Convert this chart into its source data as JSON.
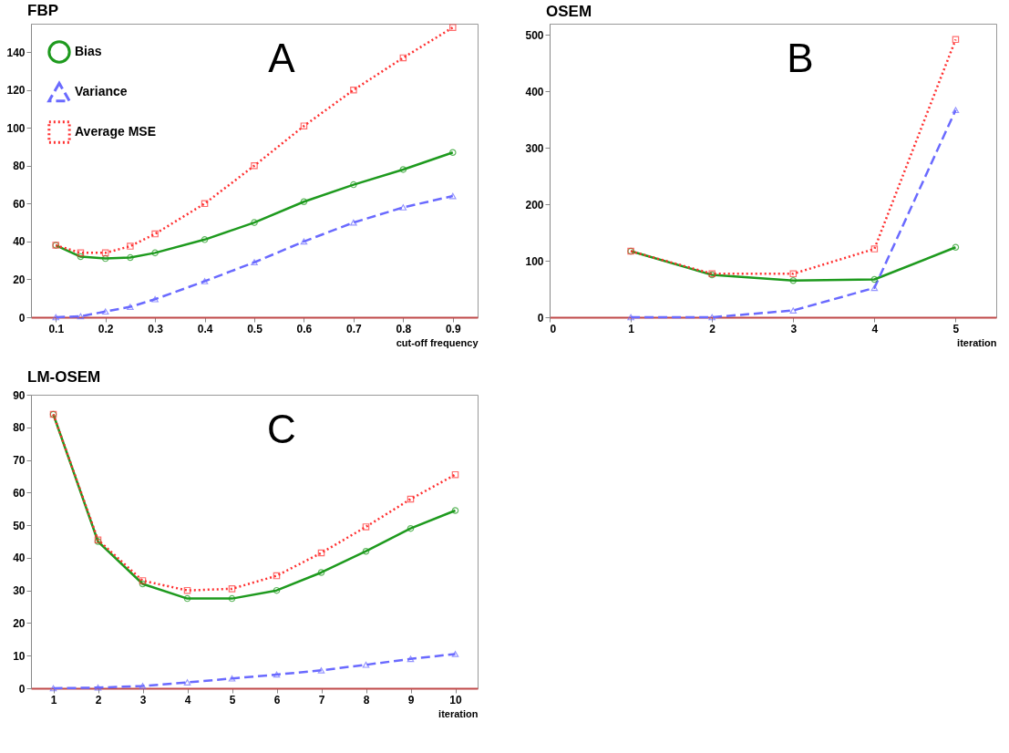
{
  "chart_data": [
    {
      "type": "line",
      "title": "FBP",
      "xlabel": "cut-off frequency",
      "annotations": [
        "A"
      ],
      "legend": "top left",
      "x": [
        0.1,
        0.15,
        0.2,
        0.25,
        0.3,
        0.4,
        0.5,
        0.6,
        0.7,
        0.8,
        0.9
      ],
      "xlim": [
        0.05,
        0.95
      ],
      "xticks": [
        0.1,
        0.2,
        0.3,
        0.4,
        0.5,
        0.6,
        0.7,
        0.8,
        0.9
      ],
      "ylim": [
        0,
        155
      ],
      "yticks": [
        0,
        20,
        40,
        60,
        80,
        100,
        120,
        140
      ],
      "series": [
        {
          "name": "Bias",
          "color": "#1e9a1e",
          "marker": "circle",
          "line_style": "solid",
          "values": [
            38,
            32,
            31,
            31.5,
            34,
            41,
            50,
            61,
            70,
            78,
            87
          ]
        },
        {
          "name": "Variance",
          "color": "#6a6aff",
          "marker": "triangle",
          "line_style": "dashed",
          "values": [
            0,
            0.5,
            3,
            5.5,
            9.5,
            19,
            29,
            40,
            50,
            58,
            64
          ]
        },
        {
          "name": "Average MSE",
          "color": "#ff3030",
          "marker": "square",
          "line_style": "dotted",
          "values": [
            38,
            34,
            34,
            37.5,
            44,
            60,
            80,
            101,
            120,
            137,
            153
          ]
        }
      ]
    },
    {
      "type": "line",
      "title": "OSEM",
      "xlabel": "iteration",
      "annotations": [
        "B"
      ],
      "legend": "top left",
      "x": [
        1,
        2,
        3,
        4,
        5
      ],
      "xlim": [
        0,
        5.5
      ],
      "xticks": [
        0,
        1,
        2,
        3,
        4,
        5
      ],
      "ylim": [
        0,
        520
      ],
      "yticks": [
        0,
        100,
        200,
        300,
        400,
        500
      ],
      "series": [
        {
          "name": "Bias",
          "color": "#1e9a1e",
          "marker": "circle",
          "line_style": "solid",
          "values": [
            117,
            75,
            65,
            67,
            124
          ]
        },
        {
          "name": "Variance",
          "color": "#6a6aff",
          "marker": "triangle",
          "line_style": "dashed",
          "values": [
            0,
            0,
            12,
            52,
            367
          ]
        },
        {
          "name": "Average MSE",
          "color": "#ff3030",
          "marker": "square",
          "line_style": "dotted",
          "values": [
            117,
            77,
            77,
            121,
            492
          ]
        }
      ]
    },
    {
      "type": "line",
      "title": "LM-OSEM",
      "xlabel": "iteration",
      "annotations": [
        "C"
      ],
      "legend": "top left",
      "x": [
        1,
        2,
        3,
        4,
        5,
        6,
        7,
        8,
        9,
        10
      ],
      "xlim": [
        0.5,
        10.5
      ],
      "xticks": [
        1,
        2,
        3,
        4,
        5,
        6,
        7,
        8,
        9,
        10
      ],
      "ylim": [
        0,
        90
      ],
      "yticks": [
        0,
        10,
        20,
        30,
        40,
        50,
        60,
        70,
        80,
        90
      ],
      "series": [
        {
          "name": "Bias",
          "color": "#1e9a1e",
          "marker": "circle",
          "line_style": "solid",
          "values": [
            84,
            45,
            32,
            27.5,
            27.5,
            30,
            35.5,
            42,
            49,
            54.5
          ]
        },
        {
          "name": "Variance",
          "color": "#6a6aff",
          "marker": "triangle",
          "line_style": "dashed",
          "values": [
            0,
            0.2,
            0.7,
            1.8,
            3,
            4.2,
            5.5,
            7.2,
            9,
            10.5
          ]
        },
        {
          "name": "Average MSE",
          "color": "#ff3030",
          "marker": "square",
          "line_style": "dotted",
          "values": [
            84,
            45.5,
            33,
            30,
            30.5,
            34.5,
            41.5,
            49.5,
            58,
            65.5
          ]
        }
      ]
    }
  ]
}
